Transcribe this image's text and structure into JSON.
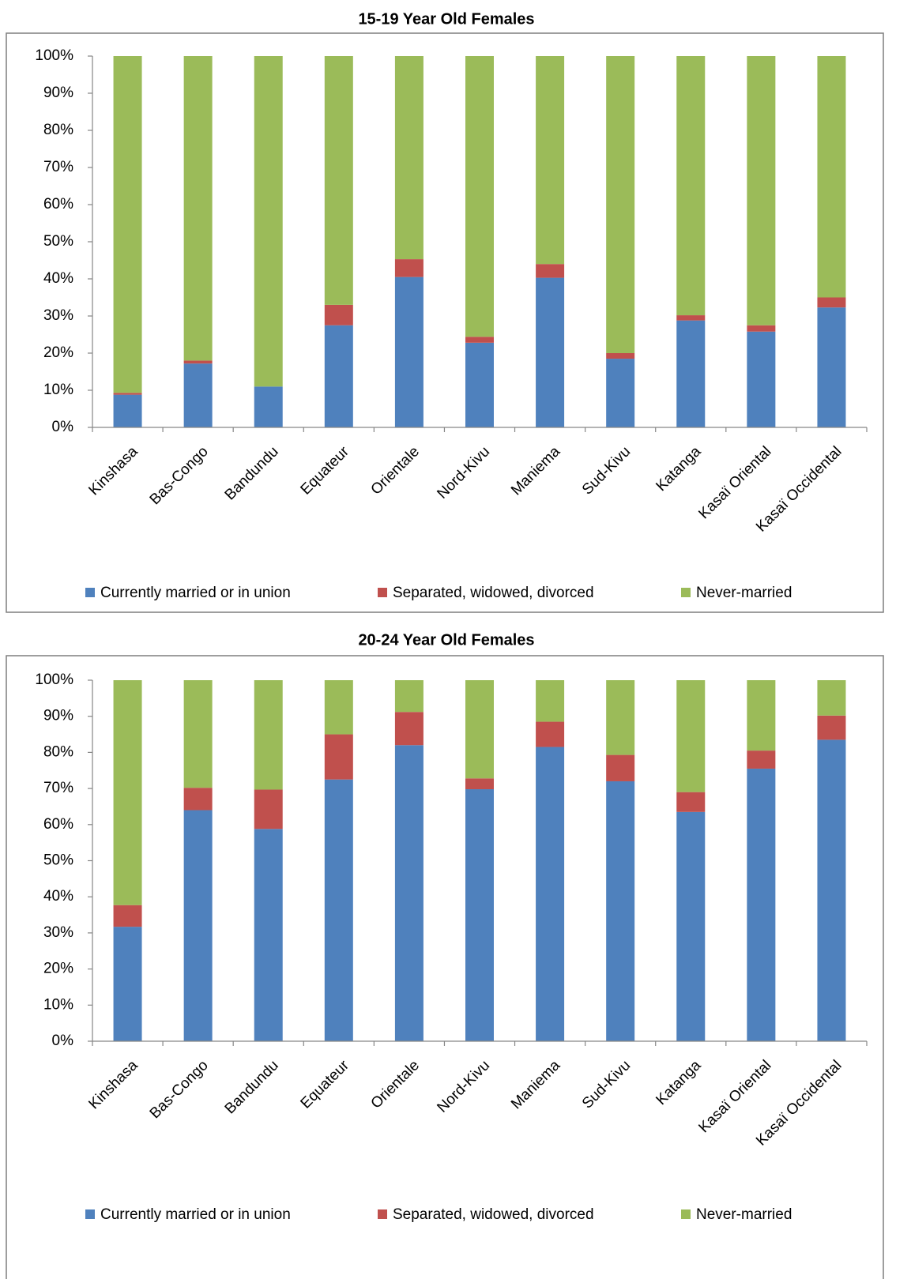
{
  "chart_data": [
    {
      "type": "bar",
      "stacked": true,
      "title": "15-19 Year Old Females",
      "categories": [
        "Kinshasa",
        "Bas-Congo",
        "Bandundu",
        "Equateur",
        "Orientale",
        "Nord-Kivu",
        "Maniema",
        "Sud-Kivu",
        "Katanga",
        "Kasaï Oriental",
        "Kasaï Occidental"
      ],
      "series": [
        {
          "name": "Currently married or in union",
          "color": "#4f81bd",
          "values": [
            8.8,
            17.2,
            11,
            27.5,
            40.5,
            22.8,
            40.3,
            18.5,
            28.8,
            25.8,
            32.3
          ]
        },
        {
          "name": "Separated, widowed, divorced",
          "color": "#c0504d",
          "values": [
            0.5,
            0.8,
            0,
            5.5,
            4.8,
            1.6,
            3.7,
            1.5,
            1.4,
            1.7,
            2.7
          ]
        },
        {
          "name": "Never-married",
          "color": "#9bbb59",
          "values": [
            90.7,
            82,
            89,
            67,
            54.7,
            75.6,
            56,
            80,
            69.8,
            72.5,
            65
          ]
        }
      ],
      "ylim": [
        0,
        100
      ],
      "yticks": [
        {
          "value": 0,
          "label": "0%"
        },
        {
          "value": 10,
          "label": "10%"
        },
        {
          "value": 20,
          "label": "20%"
        },
        {
          "value": 30,
          "label": "30%"
        },
        {
          "value": 40,
          "label": "40%"
        },
        {
          "value": 50,
          "label": "50%"
        },
        {
          "value": 60,
          "label": "60%"
        },
        {
          "value": 70,
          "label": "70%"
        },
        {
          "value": 80,
          "label": "80%"
        },
        {
          "value": 90,
          "label": "90%"
        },
        {
          "value": 100,
          "label": "100%"
        }
      ],
      "legend": "bottom"
    },
    {
      "type": "bar",
      "stacked": true,
      "title": "20-24 Year Old Females",
      "categories": [
        "Kinshasa",
        "Bas-Congo",
        "Bandundu",
        "Equateur",
        "Orientale",
        "Nord-Kivu",
        "Maniema",
        "Sud-Kivu",
        "Katanga",
        "Kasaï Oriental",
        "Kasaï Occidental"
      ],
      "series": [
        {
          "name": "Currently married or in union",
          "color": "#4f81bd",
          "values": [
            31.7,
            64,
            58.8,
            72.5,
            82,
            69.8,
            81.5,
            72,
            63.5,
            75.5,
            83.5
          ]
        },
        {
          "name": "Separated, widowed, divorced",
          "color": "#c0504d",
          "values": [
            6,
            6.2,
            10.9,
            12.5,
            9.2,
            3,
            7,
            7.3,
            5.5,
            5,
            6.7
          ]
        },
        {
          "name": "Never-married",
          "color": "#9bbb59",
          "values": [
            62.3,
            29.8,
            30.3,
            15,
            8.8,
            27.2,
            11.5,
            20.7,
            31,
            19.5,
            9.8
          ]
        }
      ],
      "ylim": [
        0,
        100
      ],
      "yticks": [
        {
          "value": 0,
          "label": "0%"
        },
        {
          "value": 10,
          "label": "10%"
        },
        {
          "value": 20,
          "label": "20%"
        },
        {
          "value": 30,
          "label": "30%"
        },
        {
          "value": 40,
          "label": "40%"
        },
        {
          "value": 50,
          "label": "50%"
        },
        {
          "value": 60,
          "label": "60%"
        },
        {
          "value": 70,
          "label": "70%"
        },
        {
          "value": 80,
          "label": "80%"
        },
        {
          "value": 90,
          "label": "90%"
        },
        {
          "value": 100,
          "label": "100%"
        }
      ],
      "legend": "bottom"
    }
  ]
}
